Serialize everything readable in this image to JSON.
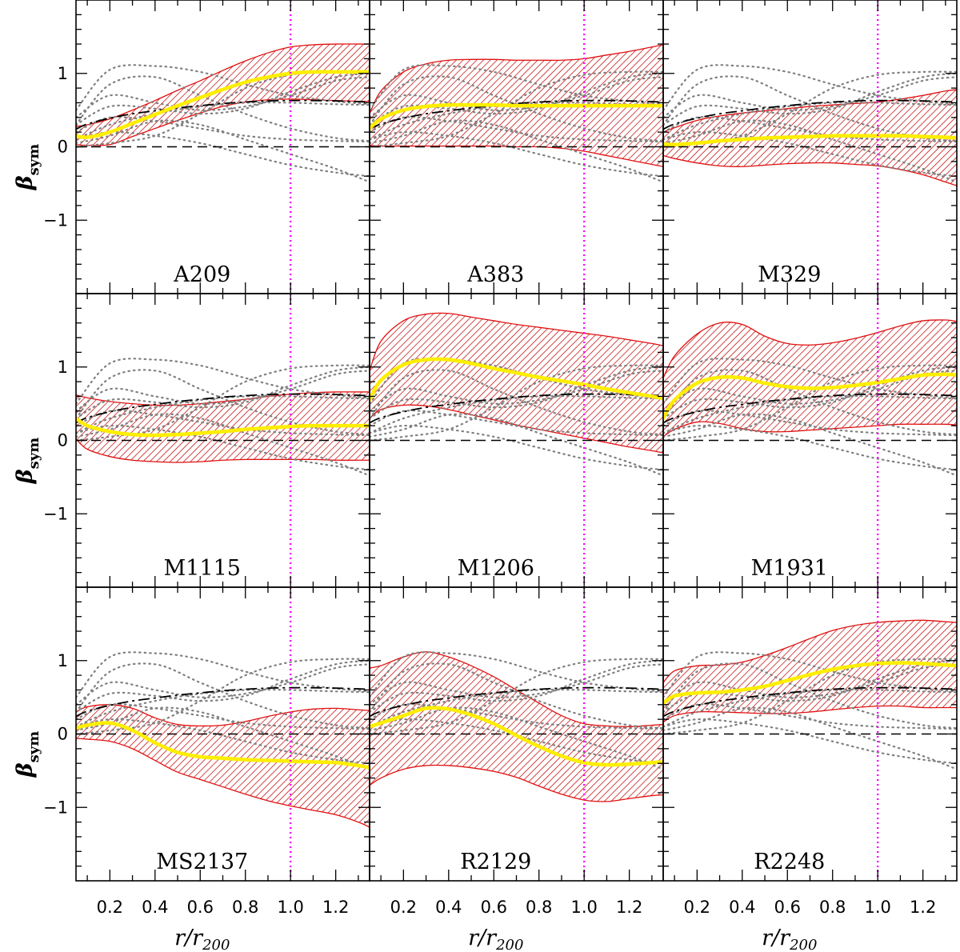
{
  "chart_data": {
    "type": "line",
    "layout": "3x3 grid",
    "xlabel_main": "r/r",
    "xlabel_sub": "200",
    "ylabel_main": "β",
    "ylabel_sub": "sym",
    "xlim": [
      0.05,
      1.35
    ],
    "ylim": [
      -2.0,
      2.0
    ],
    "xticks": [
      0.2,
      0.4,
      0.6,
      0.8,
      1.0,
      1.2
    ],
    "xtick_labels": [
      "0.2",
      "0.4",
      "0.6",
      "0.8",
      "1.0",
      "1.2"
    ],
    "yticks": [
      1,
      0,
      -1
    ],
    "ytick_labels": [
      "1",
      "0",
      "−1"
    ],
    "reference_line_x": 1.0,
    "zero_line_y": 0,
    "colors": {
      "band_edge": "#e01010",
      "band_hatch": "#c81818",
      "median": "#ffee00",
      "reference": "#ff00ff",
      "model": "#000000",
      "others": "#808080"
    },
    "model_curve": {
      "name": "model (dash-dot)",
      "x": [
        0.05,
        0.1,
        0.2,
        0.3,
        0.4,
        0.5,
        0.6,
        0.7,
        0.8,
        0.9,
        1.0,
        1.1,
        1.2,
        1.3,
        1.35
      ],
      "y": [
        0.24,
        0.31,
        0.39,
        0.45,
        0.49,
        0.53,
        0.56,
        0.59,
        0.61,
        0.625,
        0.63,
        0.63,
        0.625,
        0.615,
        0.61
      ]
    },
    "others_x": [
      0.05,
      0.2,
      0.4,
      0.6,
      0.8,
      1.0,
      1.2,
      1.35
    ],
    "panels": [
      {
        "name": "A209",
        "x": [
          0.05,
          0.1,
          0.2,
          0.3,
          0.4,
          0.5,
          0.6,
          0.7,
          0.8,
          0.9,
          1.0,
          1.1,
          1.2,
          1.3,
          1.35
        ],
        "median": [
          0.15,
          0.13,
          0.2,
          0.32,
          0.44,
          0.56,
          0.67,
          0.78,
          0.88,
          0.95,
          1.0,
          1.02,
          1.02,
          1.02,
          1.02
        ],
        "upper": [
          0.28,
          0.3,
          0.38,
          0.5,
          0.63,
          0.77,
          0.9,
          1.04,
          1.17,
          1.28,
          1.36,
          1.39,
          1.4,
          1.4,
          1.4
        ],
        "lower": [
          0.03,
          0.02,
          0.03,
          0.14,
          0.25,
          0.36,
          0.46,
          0.55,
          0.61,
          0.64,
          0.65,
          0.64,
          0.63,
          0.62,
          0.62
        ]
      },
      {
        "name": "A383",
        "x": [
          0.05,
          0.1,
          0.2,
          0.3,
          0.4,
          0.5,
          0.6,
          0.7,
          0.8,
          0.9,
          1.0,
          1.1,
          1.2,
          1.3,
          1.35
        ],
        "median": [
          0.25,
          0.38,
          0.5,
          0.55,
          0.57,
          0.57,
          0.57,
          0.56,
          0.56,
          0.56,
          0.56,
          0.56,
          0.56,
          0.56,
          0.56
        ],
        "upper": [
          0.45,
          0.76,
          1.02,
          1.13,
          1.18,
          1.19,
          1.19,
          1.18,
          1.18,
          1.18,
          1.2,
          1.25,
          1.3,
          1.36,
          1.39
        ],
        "lower": [
          0.02,
          0.01,
          0.01,
          0.01,
          0.01,
          0.01,
          0.01,
          0.0,
          0.0,
          -0.02,
          -0.06,
          -0.12,
          -0.18,
          -0.24,
          -0.27
        ]
      },
      {
        "name": "M329",
        "x": [
          0.05,
          0.1,
          0.2,
          0.3,
          0.4,
          0.5,
          0.6,
          0.7,
          0.8,
          0.9,
          1.0,
          1.1,
          1.2,
          1.3,
          1.35
        ],
        "median": [
          0.04,
          0.03,
          0.05,
          0.08,
          0.1,
          0.12,
          0.13,
          0.14,
          0.15,
          0.15,
          0.15,
          0.15,
          0.14,
          0.13,
          0.12
        ],
        "upper": [
          0.2,
          0.26,
          0.36,
          0.42,
          0.46,
          0.49,
          0.52,
          0.55,
          0.57,
          0.59,
          0.61,
          0.65,
          0.7,
          0.76,
          0.78
        ],
        "lower": [
          -0.12,
          -0.16,
          -0.22,
          -0.26,
          -0.27,
          -0.25,
          -0.23,
          -0.22,
          -0.22,
          -0.24,
          -0.26,
          -0.31,
          -0.38,
          -0.48,
          -0.53
        ]
      },
      {
        "name": "M1115",
        "x": [
          0.05,
          0.1,
          0.2,
          0.3,
          0.4,
          0.5,
          0.6,
          0.7,
          0.8,
          0.9,
          1.0,
          1.1,
          1.2,
          1.3,
          1.35
        ],
        "median": [
          0.3,
          0.2,
          0.12,
          0.08,
          0.07,
          0.08,
          0.1,
          0.12,
          0.15,
          0.17,
          0.19,
          0.2,
          0.2,
          0.2,
          0.2
        ],
        "upper": [
          0.62,
          0.58,
          0.53,
          0.5,
          0.48,
          0.48,
          0.5,
          0.53,
          0.56,
          0.6,
          0.63,
          0.65,
          0.66,
          0.66,
          0.66
        ],
        "lower": [
          0.02,
          -0.12,
          -0.22,
          -0.27,
          -0.29,
          -0.3,
          -0.29,
          -0.27,
          -0.26,
          -0.26,
          -0.26,
          -0.26,
          -0.27,
          -0.27,
          -0.27
        ]
      },
      {
        "name": "M1206",
        "x": [
          0.05,
          0.1,
          0.2,
          0.3,
          0.4,
          0.5,
          0.6,
          0.7,
          0.8,
          0.9,
          1.0,
          1.1,
          1.2,
          1.3,
          1.35
        ],
        "median": [
          0.55,
          0.82,
          1.03,
          1.1,
          1.1,
          1.05,
          0.98,
          0.92,
          0.86,
          0.81,
          0.76,
          0.7,
          0.65,
          0.6,
          0.57
        ],
        "upper": [
          0.95,
          1.35,
          1.63,
          1.72,
          1.73,
          1.68,
          1.63,
          1.58,
          1.54,
          1.5,
          1.46,
          1.42,
          1.37,
          1.32,
          1.29
        ],
        "lower": [
          0.3,
          0.42,
          0.48,
          0.47,
          0.42,
          0.35,
          0.28,
          0.21,
          0.15,
          0.09,
          0.03,
          -0.03,
          -0.09,
          -0.14,
          -0.17
        ]
      },
      {
        "name": "M1931",
        "x": [
          0.05,
          0.1,
          0.2,
          0.3,
          0.4,
          0.5,
          0.6,
          0.7,
          0.8,
          0.9,
          1.0,
          1.1,
          1.2,
          1.3,
          1.35
        ],
        "median": [
          0.3,
          0.55,
          0.78,
          0.86,
          0.85,
          0.78,
          0.73,
          0.71,
          0.72,
          0.75,
          0.79,
          0.84,
          0.89,
          0.9,
          0.89
        ],
        "upper": [
          0.85,
          1.15,
          1.45,
          1.6,
          1.58,
          1.42,
          1.32,
          1.3,
          1.33,
          1.39,
          1.47,
          1.56,
          1.63,
          1.64,
          1.62
        ],
        "lower": [
          0.05,
          0.15,
          0.25,
          0.23,
          0.16,
          0.12,
          0.12,
          0.14,
          0.16,
          0.18,
          0.2,
          0.22,
          0.22,
          0.22,
          0.21
        ]
      },
      {
        "name": "MS2137",
        "x": [
          0.05,
          0.1,
          0.2,
          0.3,
          0.4,
          0.5,
          0.6,
          0.7,
          0.8,
          0.9,
          1.0,
          1.1,
          1.2,
          1.3,
          1.35
        ],
        "median": [
          0.08,
          0.12,
          0.15,
          0.05,
          -0.12,
          -0.25,
          -0.31,
          -0.33,
          -0.35,
          -0.36,
          -0.37,
          -0.38,
          -0.39,
          -0.43,
          -0.46
        ],
        "upper": [
          0.3,
          0.37,
          0.4,
          0.35,
          0.22,
          0.13,
          0.11,
          0.12,
          0.17,
          0.24,
          0.3,
          0.34,
          0.35,
          0.33,
          0.32
        ],
        "lower": [
          -0.06,
          -0.07,
          -0.1,
          -0.2,
          -0.36,
          -0.52,
          -0.62,
          -0.72,
          -0.82,
          -0.91,
          -0.98,
          -1.04,
          -1.1,
          -1.2,
          -1.27
        ]
      },
      {
        "name": "R2129",
        "x": [
          0.05,
          0.1,
          0.2,
          0.3,
          0.4,
          0.5,
          0.6,
          0.7,
          0.8,
          0.9,
          1.0,
          1.1,
          1.2,
          1.3,
          1.35
        ],
        "median": [
          0.1,
          0.15,
          0.25,
          0.35,
          0.34,
          0.26,
          0.14,
          -0.02,
          -0.17,
          -0.3,
          -0.39,
          -0.42,
          -0.41,
          -0.39,
          -0.38
        ],
        "upper": [
          0.9,
          0.93,
          1.05,
          1.12,
          1.05,
          0.93,
          0.78,
          0.6,
          0.42,
          0.25,
          0.14,
          0.11,
          0.1,
          0.12,
          0.13
        ],
        "lower": [
          -0.7,
          -0.6,
          -0.48,
          -0.43,
          -0.43,
          -0.46,
          -0.51,
          -0.59,
          -0.71,
          -0.82,
          -0.9,
          -0.92,
          -0.88,
          -0.84,
          -0.83
        ]
      },
      {
        "name": "R2248",
        "x": [
          0.05,
          0.1,
          0.2,
          0.3,
          0.4,
          0.5,
          0.6,
          0.7,
          0.8,
          0.9,
          1.0,
          1.1,
          1.2,
          1.3,
          1.35
        ],
        "median": [
          0.42,
          0.52,
          0.56,
          0.57,
          0.6,
          0.65,
          0.73,
          0.81,
          0.88,
          0.93,
          0.96,
          0.97,
          0.96,
          0.94,
          0.93
        ],
        "upper": [
          0.7,
          0.86,
          0.93,
          0.94,
          0.98,
          1.07,
          1.18,
          1.3,
          1.41,
          1.48,
          1.52,
          1.54,
          1.55,
          1.53,
          1.52
        ],
        "lower": [
          0.16,
          0.25,
          0.3,
          0.3,
          0.29,
          0.28,
          0.28,
          0.3,
          0.33,
          0.36,
          0.38,
          0.38,
          0.36,
          0.36,
          0.36
        ]
      }
    ],
    "others": [
      [
        0.0,
        0.05,
        0.15,
        0.45,
        0.8,
        0.98,
        1.02,
        1.02
      ],
      [
        0.5,
        1.05,
        1.1,
        1.02,
        0.85,
        0.7,
        0.62,
        0.58
      ],
      [
        0.3,
        0.55,
        0.52,
        0.45,
        0.52,
        0.75,
        0.95,
        1.0
      ],
      [
        0.4,
        0.7,
        0.6,
        0.5,
        0.55,
        0.7,
        0.9,
        0.95
      ],
      [
        0.1,
        0.3,
        0.45,
        0.55,
        0.6,
        0.6,
        0.58,
        0.57
      ],
      [
        0.2,
        0.4,
        0.35,
        0.25,
        0.15,
        0.1,
        0.08,
        0.07
      ],
      [
        0.1,
        0.2,
        0.15,
        0.05,
        -0.1,
        -0.25,
        -0.35,
        -0.4
      ],
      [
        0.05,
        0.15,
        0.35,
        0.3,
        0.1,
        -0.1,
        -0.3,
        -0.48
      ],
      [
        0.3,
        0.85,
        0.95,
        0.7,
        0.45,
        0.25,
        0.12,
        0.08
      ]
    ]
  }
}
